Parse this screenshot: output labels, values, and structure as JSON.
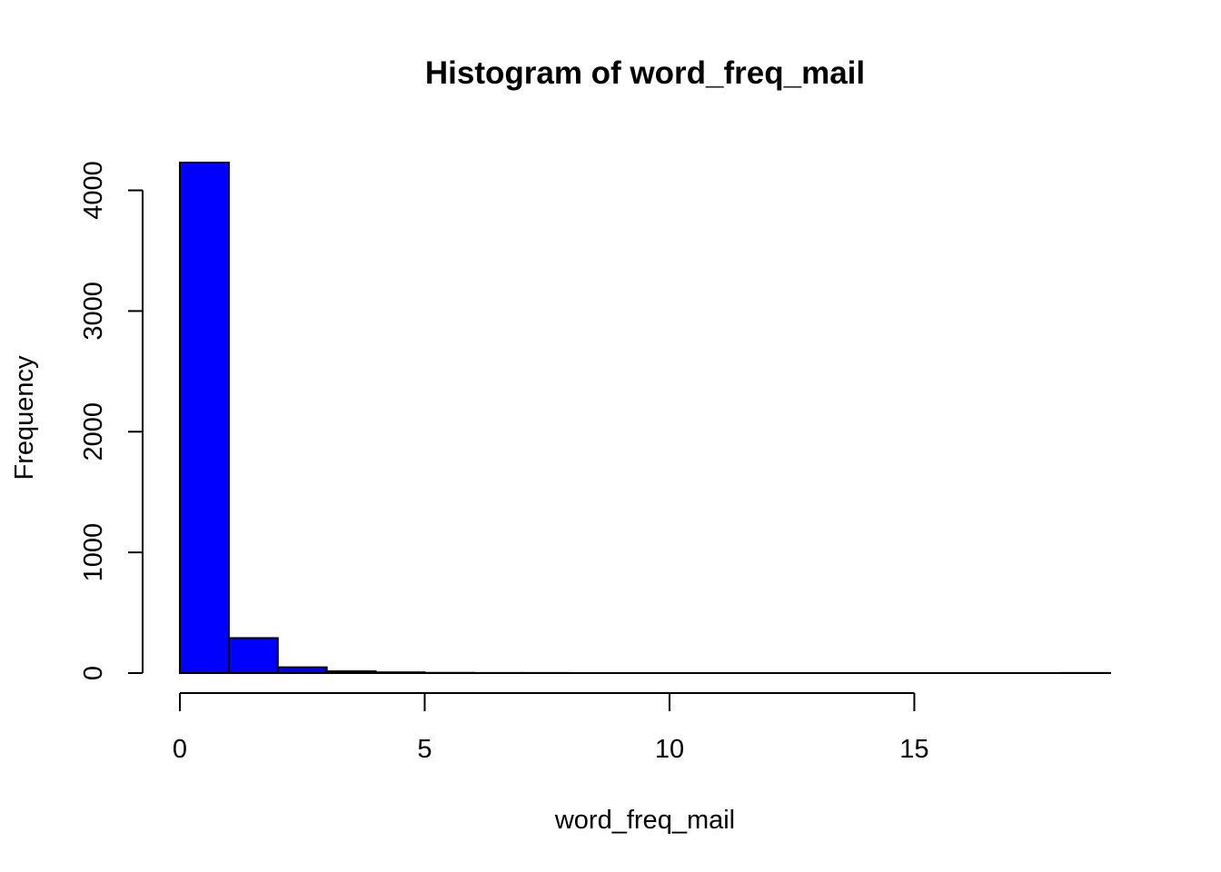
{
  "chart_data": {
    "type": "bar",
    "title": "Histogram of word_freq_mail",
    "xlabel": "word_freq_mail",
    "ylabel": "Frequency",
    "bar_color": "#0000ff",
    "bin_edges": [
      0,
      1,
      2,
      3,
      4,
      5,
      6,
      7,
      8,
      9,
      10,
      11,
      12,
      13,
      14,
      15,
      16,
      17,
      18,
      19
    ],
    "values": [
      4230,
      290,
      48,
      15,
      6,
      2,
      1,
      1,
      0,
      0,
      0,
      0,
      0,
      0,
      0,
      0,
      0,
      0,
      1
    ],
    "xticks": [
      0,
      5,
      10,
      15
    ],
    "yticks": [
      0,
      1000,
      2000,
      3000,
      4000
    ],
    "xlim": [
      0,
      19
    ],
    "ylim": [
      0,
      4230
    ],
    "grid": false
  }
}
